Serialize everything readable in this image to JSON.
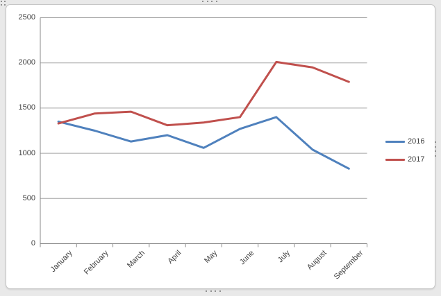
{
  "window": {
    "background": "#e9e9e9",
    "chart_frame_border": "#c6c6c6",
    "selection_handles": [
      "top-left",
      "top-center",
      "right-center",
      "bottom-center"
    ],
    "handle_dot_color": "#8f8f8f"
  },
  "chart_data": {
    "type": "line",
    "title": "",
    "categories": [
      "January",
      "February",
      "March",
      "April",
      "May",
      "June",
      "July",
      "August",
      "September"
    ],
    "series": [
      {
        "name": "2016",
        "color": "#4F81BD",
        "values": [
          1350,
          1250,
          1130,
          1200,
          1060,
          1270,
          1400,
          1040,
          830
        ]
      },
      {
        "name": "2017",
        "color": "#C0504D",
        "values": [
          1330,
          1440,
          1460,
          1310,
          1340,
          1400,
          2010,
          1950,
          1790
        ]
      }
    ],
    "xlabel": "",
    "ylabel": "",
    "ylim": [
      0,
      2500
    ],
    "yticks": [
      0,
      500,
      1000,
      1500,
      2000,
      2500
    ],
    "ytick_labels": [
      "0",
      "500",
      "1000",
      "1500",
      "2000",
      "2500"
    ],
    "grid": true,
    "legend_position": "right",
    "line_width": 3,
    "axis_color": "#898989",
    "gridline_color": "#a3a3a3",
    "label_color": "#3f3f3f"
  }
}
